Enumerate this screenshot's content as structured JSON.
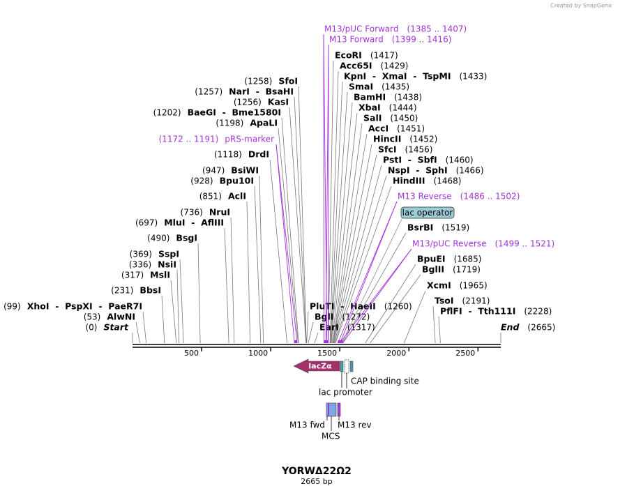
{
  "logo": "Created by SnapGene",
  "title": "YORWΔ22Ω2",
  "subtitle": "2665 bp",
  "start": {
    "name": "Start",
    "label": "(0)",
    "position": 0
  },
  "end": {
    "name": "End",
    "label": "(2665)",
    "position": 2665
  },
  "ruler_ticks": [
    500,
    1000,
    1500,
    2000,
    2500
  ],
  "sites": [
    {
      "name": "SfoI",
      "label": "(1258)",
      "position": 1258
    },
    {
      "name": "NarI  -  BsaHI",
      "label": "(1257)",
      "position": 1257
    },
    {
      "name": "KasI",
      "label": "(1256)",
      "position": 1256
    },
    {
      "name": "BaeGI  -  Bme1580I",
      "label": "(1202)",
      "position": 1202
    },
    {
      "name": "ApaLI",
      "label": "(1198)",
      "position": 1198
    },
    {
      "name": "DrdI",
      "label": "(1118)",
      "position": 1118
    },
    {
      "name": "BsiWI",
      "label": "(947)",
      "position": 947
    },
    {
      "name": "Bpu10I",
      "label": "(928)",
      "position": 928
    },
    {
      "name": "AclI",
      "label": "(851)",
      "position": 851
    },
    {
      "name": "NruI",
      "label": "(736)",
      "position": 736
    },
    {
      "name": "MluI  -  AflIII",
      "label": "(697)",
      "position": 697
    },
    {
      "name": "BsgI",
      "label": "(490)",
      "position": 490
    },
    {
      "name": "SspI",
      "label": "(369)",
      "position": 369
    },
    {
      "name": "NsiI",
      "label": "(336)",
      "position": 336
    },
    {
      "name": "MslI",
      "label": "(317)",
      "position": 317
    },
    {
      "name": "BbsI",
      "label": "(231)",
      "position": 231
    },
    {
      "name": "XhoI  -  PspXI  -  PaeR7I",
      "label": "(99)",
      "position": 99
    },
    {
      "name": "AlwNI",
      "label": "(53)",
      "position": 53
    },
    {
      "name": "EcoRI",
      "label": "(1417)",
      "position": 1417
    },
    {
      "name": "Acc65I",
      "label": "(1429)",
      "position": 1429
    },
    {
      "name": "KpnI  -  XmaI  -  TspMI",
      "label": "(1433)",
      "position": 1433
    },
    {
      "name": "SmaI",
      "label": "(1435)",
      "position": 1435
    },
    {
      "name": "BamHI",
      "label": "(1438)",
      "position": 1438
    },
    {
      "name": "XbaI",
      "label": "(1444)",
      "position": 1444
    },
    {
      "name": "SalI",
      "label": "(1450)",
      "position": 1450
    },
    {
      "name": "AccI",
      "label": "(1451)",
      "position": 1451
    },
    {
      "name": "HincII",
      "label": "(1452)",
      "position": 1452
    },
    {
      "name": "SfcI",
      "label": "(1456)",
      "position": 1456
    },
    {
      "name": "PstI  -  SbfI",
      "label": "(1460)",
      "position": 1460
    },
    {
      "name": "NspI  -  SphI",
      "label": "(1466)",
      "position": 1466
    },
    {
      "name": "HindIII",
      "label": "(1468)",
      "position": 1468
    },
    {
      "name": "BsrBI",
      "label": "(1519)",
      "position": 1519
    },
    {
      "name": "BpuEI",
      "label": "(1685)",
      "position": 1685
    },
    {
      "name": "BglII",
      "label": "(1719)",
      "position": 1719
    },
    {
      "name": "XcmI",
      "label": "(1965)",
      "position": 1965
    },
    {
      "name": "TsoI",
      "label": "(2191)",
      "position": 2191
    },
    {
      "name": "PflFI  -  Tth111I",
      "label": "(2228)",
      "position": 2228
    },
    {
      "name": "PluTI  -  HaeII",
      "label": "(1260)",
      "position": 1260
    },
    {
      "name": "BglI",
      "label": "(1272)",
      "position": 1272
    },
    {
      "name": "EarI",
      "label": "(1317)",
      "position": 1317
    }
  ],
  "primers": [
    {
      "name": "M13/pUC Forward",
      "label": "(1385 .. 1407)",
      "start": 1385,
      "end": 1407
    },
    {
      "name": "M13 Forward",
      "label": "(1399 .. 1416)",
      "start": 1399,
      "end": 1416
    },
    {
      "name": "pRS-marker",
      "label": "(1172 .. 1191)",
      "start": 1172,
      "end": 1191
    },
    {
      "name": "M13 Reverse",
      "label": "(1486 .. 1502)",
      "start": 1486,
      "end": 1502
    },
    {
      "name": "M13/pUC Reverse",
      "label": "(1499 .. 1521)",
      "start": 1499,
      "end": 1521
    }
  ],
  "lac_operator": "lac operator",
  "features": {
    "lacz": "lacZα",
    "cap": "CAP binding site",
    "promoter": "lac promoter",
    "m13_fwd": "M13 fwd",
    "m13_rev": "M13 rev",
    "mcs": "MCS"
  }
}
